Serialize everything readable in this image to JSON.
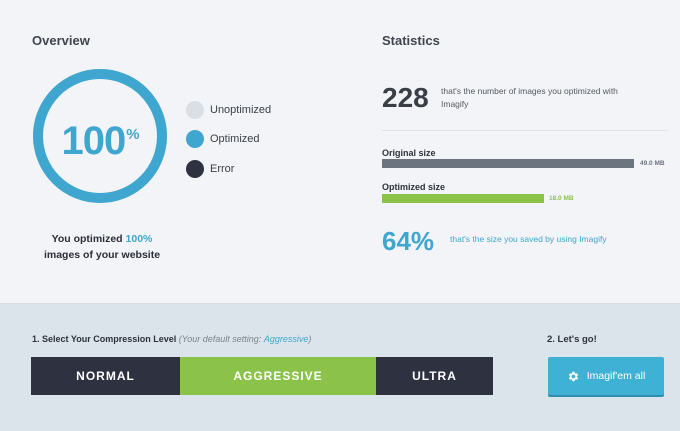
{
  "overview": {
    "title": "Overview",
    "percent": "100",
    "percent_symbol": "%",
    "optimized_fraction": 1.0,
    "legend": [
      {
        "label": "Unoptimized",
        "color": "#d9dfe5"
      },
      {
        "label": "Optimized",
        "color": "#3fa6cf"
      },
      {
        "label": "Error",
        "color": "#2d3140"
      }
    ],
    "summary_prefix": "You optimized",
    "summary_value": "100%",
    "summary_suffix": "images of your website"
  },
  "statistics": {
    "title": "Statistics",
    "count": "228",
    "count_desc": "that's the number of images you optimized with Imagify",
    "original_label": "Original size",
    "original_value": "49.0 MB",
    "original_color": "#6c7480",
    "optimized_label": "Optimized size",
    "optimized_value": "18.0 MB",
    "optimized_color": "#8bc34a",
    "saved_percent": "64%",
    "saved_desc": "that's the size you saved by using Imagify"
  },
  "compression": {
    "heading": "1. Select Your Compression Level",
    "default_note": "(Your default setting:",
    "default_value": "Aggressive",
    "default_close": ")",
    "levels": [
      "NORMAL",
      "AGGRESSIVE",
      "ULTRA"
    ],
    "active_level": "AGGRESSIVE"
  },
  "action": {
    "heading": "2. Let's go!",
    "button_label": "Imagif'em all",
    "icon": "gear-icon"
  },
  "colors": {
    "accent": "#3fa6cf",
    "green": "#8bc34a",
    "dark": "#2d3140"
  }
}
